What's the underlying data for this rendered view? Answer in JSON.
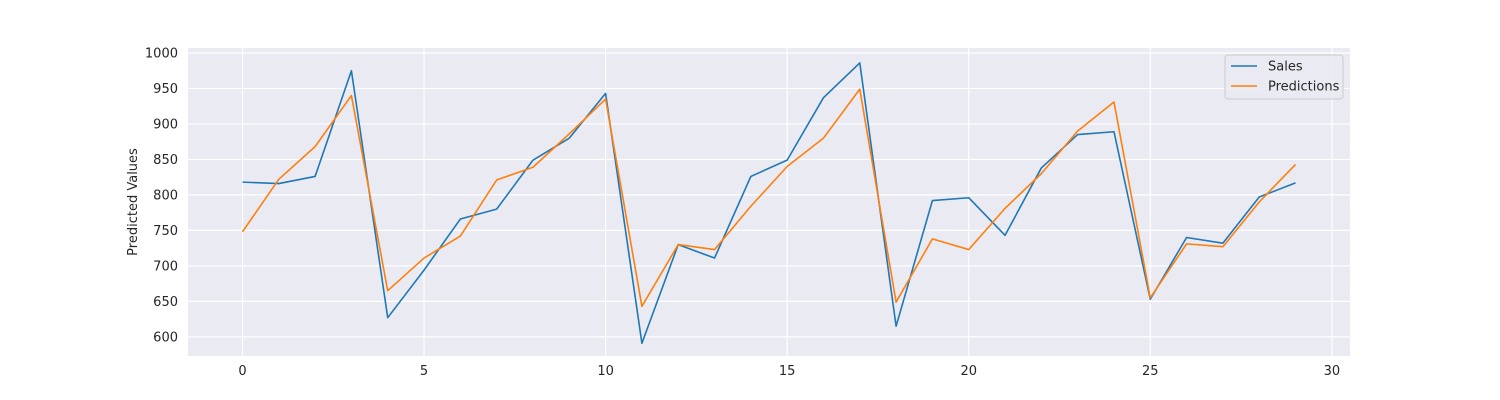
{
  "chart_data": {
    "type": "line",
    "title": "",
    "xlabel": "",
    "ylabel": "Predicted Values",
    "xlim": [
      -1.5,
      30.5
    ],
    "ylim": [
      573,
      1007
    ],
    "x_ticks": [
      0,
      5,
      10,
      15,
      20,
      25,
      30
    ],
    "y_ticks": [
      600,
      650,
      700,
      750,
      800,
      850,
      900,
      950,
      1000
    ],
    "grid": true,
    "legend_position": "top-right",
    "x": [
      0,
      1,
      2,
      3,
      4,
      5,
      6,
      7,
      8,
      9,
      10,
      11,
      12,
      13,
      14,
      15,
      16,
      17,
      18,
      19,
      20,
      21,
      22,
      23,
      24,
      25,
      26,
      27,
      28,
      29
    ],
    "series": [
      {
        "name": "Sales",
        "color": "#1f77b4",
        "values": [
          818,
          816,
          826,
          975,
          627,
          694,
          766,
          780,
          849,
          880,
          943,
          591,
          730,
          711,
          826,
          849,
          937,
          986,
          615,
          792,
          796,
          743,
          838,
          885,
          889,
          653,
          740,
          732,
          797,
          817
        ]
      },
      {
        "name": "Predictions",
        "color": "#ff7f0e",
        "values": [
          748,
          822,
          868,
          940,
          665,
          711,
          742,
          821,
          839,
          886,
          935,
          643,
          730,
          723,
          784,
          840,
          880,
          949,
          649,
          738,
          723,
          781,
          830,
          890,
          931,
          655,
          731,
          727,
          790,
          843
        ]
      }
    ]
  }
}
